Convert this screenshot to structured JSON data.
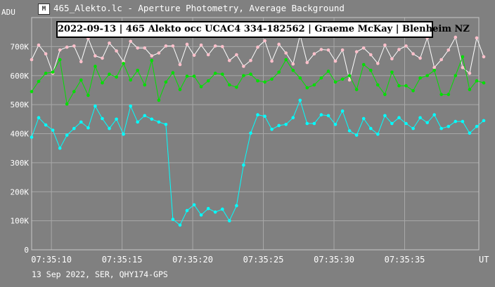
{
  "window": {
    "title": "465_Alekto.lc - Aperture Photometry, Average Background",
    "icon": "app-logo-icon"
  },
  "footer": {
    "text": "13 Sep 2022, SER, QHY174-GPS"
  },
  "colors": {
    "background": "#808080",
    "grid": "#a8a8a8",
    "series_white": "#ffffff",
    "series_pink": "#ffc0cb",
    "series_green": "#00e000",
    "series_cyan": "#00ffff"
  },
  "chart_data": {
    "type": "line",
    "title": "2022-09-13 | 465 Alekto occ UCAC4 334-182562 | Graeme McKay | Blenheim NZ",
    "ylabel": "ADU",
    "xlabel": "UT",
    "ylim": [
      0,
      800000
    ],
    "yticks": [
      {
        "value": 0,
        "label": "0"
      },
      {
        "value": 100000,
        "label": "100K"
      },
      {
        "value": 200000,
        "label": "200K"
      },
      {
        "value": 300000,
        "label": "300K"
      },
      {
        "value": 400000,
        "label": "400K"
      },
      {
        "value": 500000,
        "label": "500K"
      },
      {
        "value": 600000,
        "label": "600K"
      },
      {
        "value": 700000,
        "label": "700K"
      }
    ],
    "xlim": [
      8.6,
      40.25
    ],
    "xticks": [
      {
        "value": 10,
        "label": "07:35:10"
      },
      {
        "value": 15,
        "label": "07:35:15"
      },
      {
        "value": 20,
        "label": "07:35:20"
      },
      {
        "value": 25,
        "label": "07:35:25"
      },
      {
        "value": 30,
        "label": "07:35:30"
      },
      {
        "value": 35,
        "label": "07:35:35"
      }
    ],
    "x_step": 0.5,
    "x_start": 8.6,
    "grid": true,
    "series": [
      {
        "color": "#ffffff",
        "marker_color": "#ffc0cb",
        "values": [
          655000,
          705000,
          675000,
          608000,
          688000,
          698000,
          702000,
          648000,
          728000,
          668000,
          660000,
          712000,
          685000,
          648000,
          718000,
          695000,
          695000,
          668000,
          678000,
          702000,
          702000,
          638000,
          708000,
          670000,
          705000,
          672000,
          702000,
          700000,
          652000,
          672000,
          632000,
          652000,
          698000,
          720000,
          650000,
          708000,
          678000,
          640000,
          740000,
          645000,
          675000,
          690000,
          688000,
          650000,
          688000,
          585000,
          682000,
          695000,
          672000,
          642000,
          705000,
          658000,
          690000,
          702000,
          675000,
          660000,
          730000,
          628000,
          655000,
          688000,
          732000,
          628000,
          608000,
          730000,
          665000
        ]
      },
      {
        "color": "#00e000",
        "marker_color": "#00e000",
        "values": [
          545000,
          580000,
          608000,
          612000,
          655000,
          502000,
          545000,
          585000,
          532000,
          632000,
          575000,
          605000,
          595000,
          642000,
          585000,
          618000,
          568000,
          652000,
          515000,
          578000,
          610000,
          552000,
          598000,
          598000,
          562000,
          582000,
          608000,
          605000,
          568000,
          560000,
          600000,
          605000,
          582000,
          578000,
          588000,
          612000,
          655000,
          618000,
          592000,
          558000,
          568000,
          592000,
          615000,
          578000,
          588000,
          600000,
          552000,
          638000,
          618000,
          568000,
          535000,
          612000,
          565000,
          565000,
          548000,
          592000,
          600000,
          618000,
          535000,
          535000,
          600000,
          665000,
          552000,
          582000,
          575000
        ]
      },
      {
        "color": "#00ffff",
        "marker_color": "#00ffff",
        "values": [
          388000,
          455000,
          430000,
          412000,
          350000,
          395000,
          418000,
          440000,
          420000,
          495000,
          452000,
          418000,
          450000,
          398000,
          495000,
          440000,
          462000,
          450000,
          440000,
          432000,
          105000,
          85000,
          135000,
          155000,
          120000,
          142000,
          130000,
          140000,
          100000,
          152000,
          292000,
          402000,
          465000,
          460000,
          415000,
          428000,
          432000,
          455000,
          515000,
          435000,
          435000,
          465000,
          462000,
          432000,
          478000,
          410000,
          395000,
          452000,
          418000,
          398000,
          462000,
          435000,
          455000,
          435000,
          418000,
          455000,
          438000,
          465000,
          418000,
          425000,
          442000,
          442000,
          402000,
          425000,
          445000
        ]
      }
    ]
  }
}
